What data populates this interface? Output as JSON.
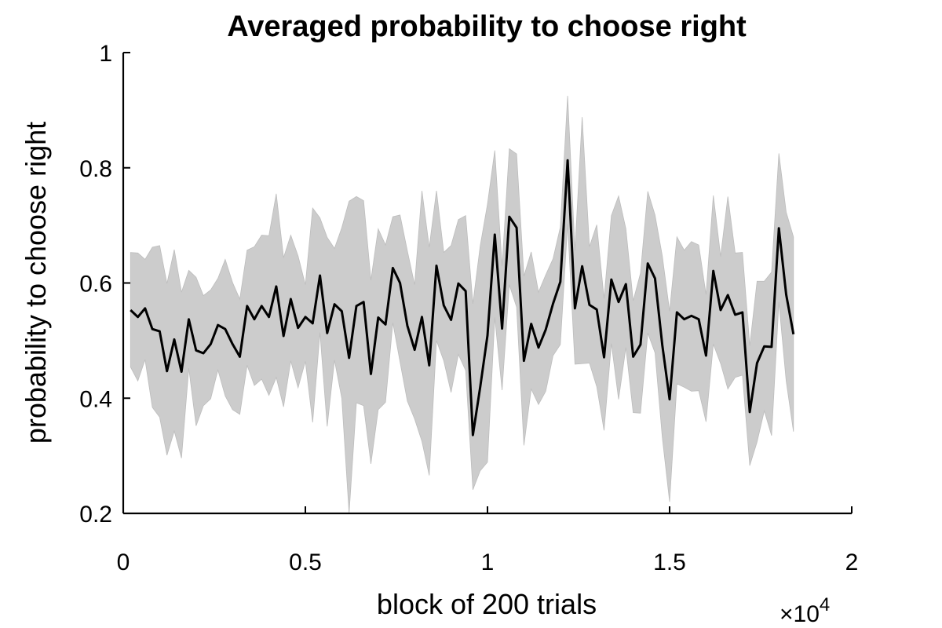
{
  "chart_data": {
    "type": "line",
    "title": "Averaged probability to choose right",
    "xlabel": "block of 200 trials",
    "ylabel": "probability to choose right",
    "x_multiplier_label": "×10",
    "x_multiplier_exponent": "4",
    "xlim": [
      0,
      20000
    ],
    "ylim": [
      0.2,
      1.0
    ],
    "xticks": [
      0,
      5000,
      10000,
      15000,
      20000
    ],
    "xtick_labels": [
      "0",
      "0.5",
      "1",
      "1.5",
      "2"
    ],
    "yticks": [
      0.2,
      0.4,
      0.6,
      0.8,
      1.0
    ],
    "ytick_labels": [
      "0.2",
      "0.4",
      "0.6",
      "0.8",
      "1"
    ],
    "grid": false,
    "colors": {
      "line": "#000000",
      "band": "#cccccc"
    },
    "series": [
      {
        "x": [
          200,
          400,
          600,
          800,
          1000,
          1200,
          1400,
          1600,
          1800,
          2000,
          2200,
          2400,
          2600,
          2800,
          3000,
          3200,
          3400,
          3600,
          3800,
          4000,
          4200,
          4400,
          4600,
          4800,
          5000,
          5200,
          5400,
          5600,
          5800,
          6000,
          6200,
          6400,
          6600,
          6800,
          7000,
          7200,
          7400,
          7600,
          7800,
          8000,
          8200,
          8400,
          8600,
          8800,
          9000,
          9200,
          9400,
          9600,
          9800,
          10000,
          10200,
          10400,
          10600,
          10800,
          11000,
          11200,
          11400,
          11600,
          11800,
          12000,
          12200,
          12400,
          12600,
          12800,
          13000,
          13200,
          13400,
          13600,
          13800,
          14000,
          14200,
          14400,
          14600,
          14800,
          15000,
          15200,
          15400,
          15600,
          15800,
          16000,
          16200,
          16400,
          16600,
          16800,
          17000,
          17200,
          17400,
          17600,
          17800,
          18000,
          18200,
          18400
        ],
        "y": [
          0.553,
          0.541,
          0.556,
          0.52,
          0.516,
          0.447,
          0.502,
          0.446,
          0.537,
          0.483,
          0.478,
          0.494,
          0.527,
          0.52,
          0.494,
          0.472,
          0.56,
          0.537,
          0.56,
          0.541,
          0.594,
          0.508,
          0.572,
          0.522,
          0.541,
          0.53,
          0.613,
          0.513,
          0.563,
          0.551,
          0.47,
          0.56,
          0.567,
          0.442,
          0.54,
          0.528,
          0.626,
          0.6,
          0.526,
          0.484,
          0.541,
          0.457,
          0.63,
          0.561,
          0.536,
          0.599,
          0.586,
          0.336,
          0.419,
          0.509,
          0.684,
          0.521,
          0.715,
          0.696,
          0.465,
          0.529,
          0.488,
          0.519,
          0.564,
          0.602,
          0.813,
          0.556,
          0.629,
          0.562,
          0.554,
          0.471,
          0.606,
          0.567,
          0.598,
          0.472,
          0.493,
          0.634,
          0.608,
          0.492,
          0.398,
          0.549,
          0.537,
          0.543,
          0.537,
          0.474,
          0.621,
          0.553,
          0.579,
          0.545,
          0.549,
          0.376,
          0.461,
          0.49,
          0.489,
          0.695,
          0.58,
          0.511
        ],
        "upper": [
          0.653,
          0.652,
          0.641,
          0.662,
          0.665,
          0.599,
          0.658,
          0.584,
          0.622,
          0.61,
          0.578,
          0.588,
          0.608,
          0.641,
          0.601,
          0.572,
          0.657,
          0.663,
          0.683,
          0.682,
          0.755,
          0.644,
          0.683,
          0.647,
          0.597,
          0.73,
          0.713,
          0.679,
          0.66,
          0.696,
          0.742,
          0.75,
          0.743,
          0.605,
          0.694,
          0.666,
          0.715,
          0.718,
          0.656,
          0.597,
          0.76,
          0.662,
          0.76,
          0.653,
          0.665,
          0.71,
          0.717,
          0.564,
          0.664,
          0.737,
          0.83,
          0.629,
          0.833,
          0.824,
          0.612,
          0.654,
          0.584,
          0.614,
          0.642,
          0.697,
          0.925,
          0.656,
          0.888,
          0.663,
          0.701,
          0.573,
          0.717,
          0.751,
          0.694,
          0.569,
          0.617,
          0.759,
          0.718,
          0.647,
          0.551,
          0.68,
          0.657,
          0.672,
          0.666,
          0.58,
          0.752,
          0.646,
          0.75,
          0.652,
          0.653,
          0.491,
          0.603,
          0.603,
          0.619,
          0.825,
          0.723,
          0.68
        ],
        "lower": [
          0.454,
          0.43,
          0.467,
          0.384,
          0.367,
          0.301,
          0.343,
          0.296,
          0.452,
          0.352,
          0.387,
          0.399,
          0.449,
          0.404,
          0.38,
          0.372,
          0.457,
          0.422,
          0.433,
          0.405,
          0.436,
          0.385,
          0.465,
          0.418,
          0.464,
          0.358,
          0.514,
          0.351,
          0.466,
          0.4,
          0.195,
          0.392,
          0.387,
          0.286,
          0.38,
          0.393,
          0.531,
          0.463,
          0.395,
          0.364,
          0.325,
          0.266,
          0.5,
          0.465,
          0.41,
          0.476,
          0.448,
          0.241,
          0.274,
          0.289,
          0.54,
          0.414,
          0.597,
          0.558,
          0.318,
          0.416,
          0.389,
          0.412,
          0.474,
          0.493,
          0.703,
          0.459,
          0.46,
          0.461,
          0.42,
          0.344,
          0.495,
          0.398,
          0.488,
          0.375,
          0.374,
          0.513,
          0.479,
          0.332,
          0.22,
          0.425,
          0.419,
          0.412,
          0.413,
          0.359,
          0.494,
          0.46,
          0.416,
          0.436,
          0.44,
          0.283,
          0.324,
          0.378,
          0.335,
          0.567,
          0.43,
          0.342
        ]
      }
    ]
  }
}
